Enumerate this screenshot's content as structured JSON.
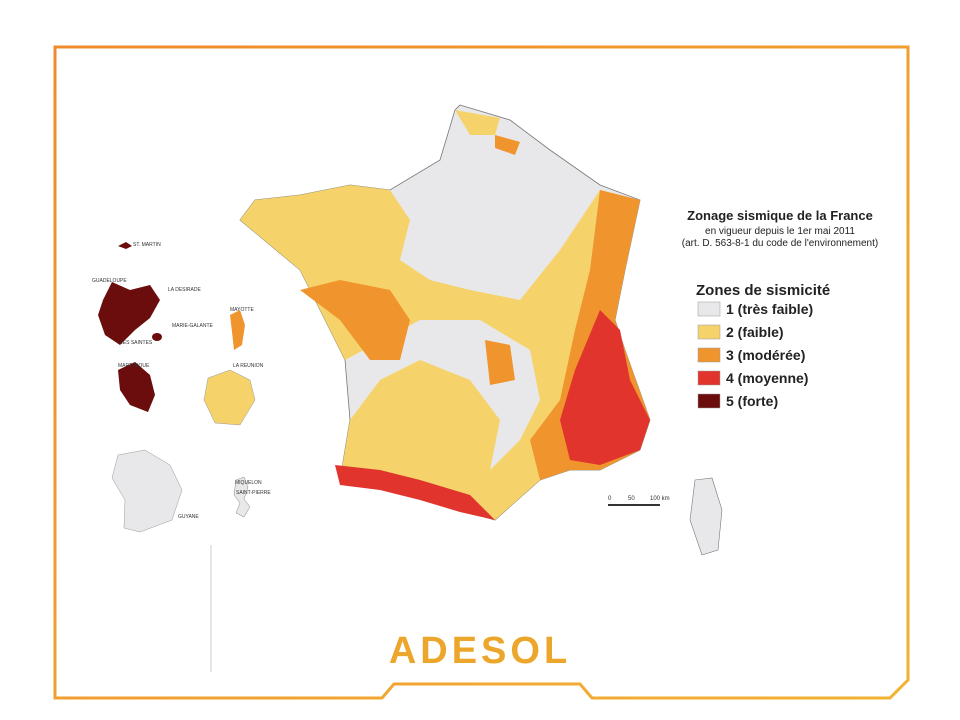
{
  "map": {
    "title": "Zonage sismique de la France",
    "subtitle": "en vigueur depuis le 1er mai 2011",
    "reference": "(art. D. 563-8-1 du code de l'environnement)",
    "legend": {
      "title": "Zones de sismicité",
      "items": [
        {
          "label": "1 (très faible)",
          "color": "#e8e8ea"
        },
        {
          "label": "2 (faible)",
          "color": "#f5d36a"
        },
        {
          "label": "3 (modérée)",
          "color": "#f0952e"
        },
        {
          "label": "4 (moyenne)",
          "color": "#e0342c"
        },
        {
          "label": "5 (forte)",
          "color": "#6b0d0d"
        }
      ]
    },
    "scale": [
      "0",
      "50",
      "100 km"
    ],
    "overseas": [
      "ST. MARTIN",
      "GUADELOUPE",
      "LA DESIRADE",
      "MARIE-GALANTE",
      "LES SAINTES",
      "MAYOTTE",
      "MARTINIQUE",
      "LA REUNION",
      "GUYANE",
      "MIQUELON",
      "SAINT-PIERRE"
    ]
  },
  "logo": "ADESOL"
}
